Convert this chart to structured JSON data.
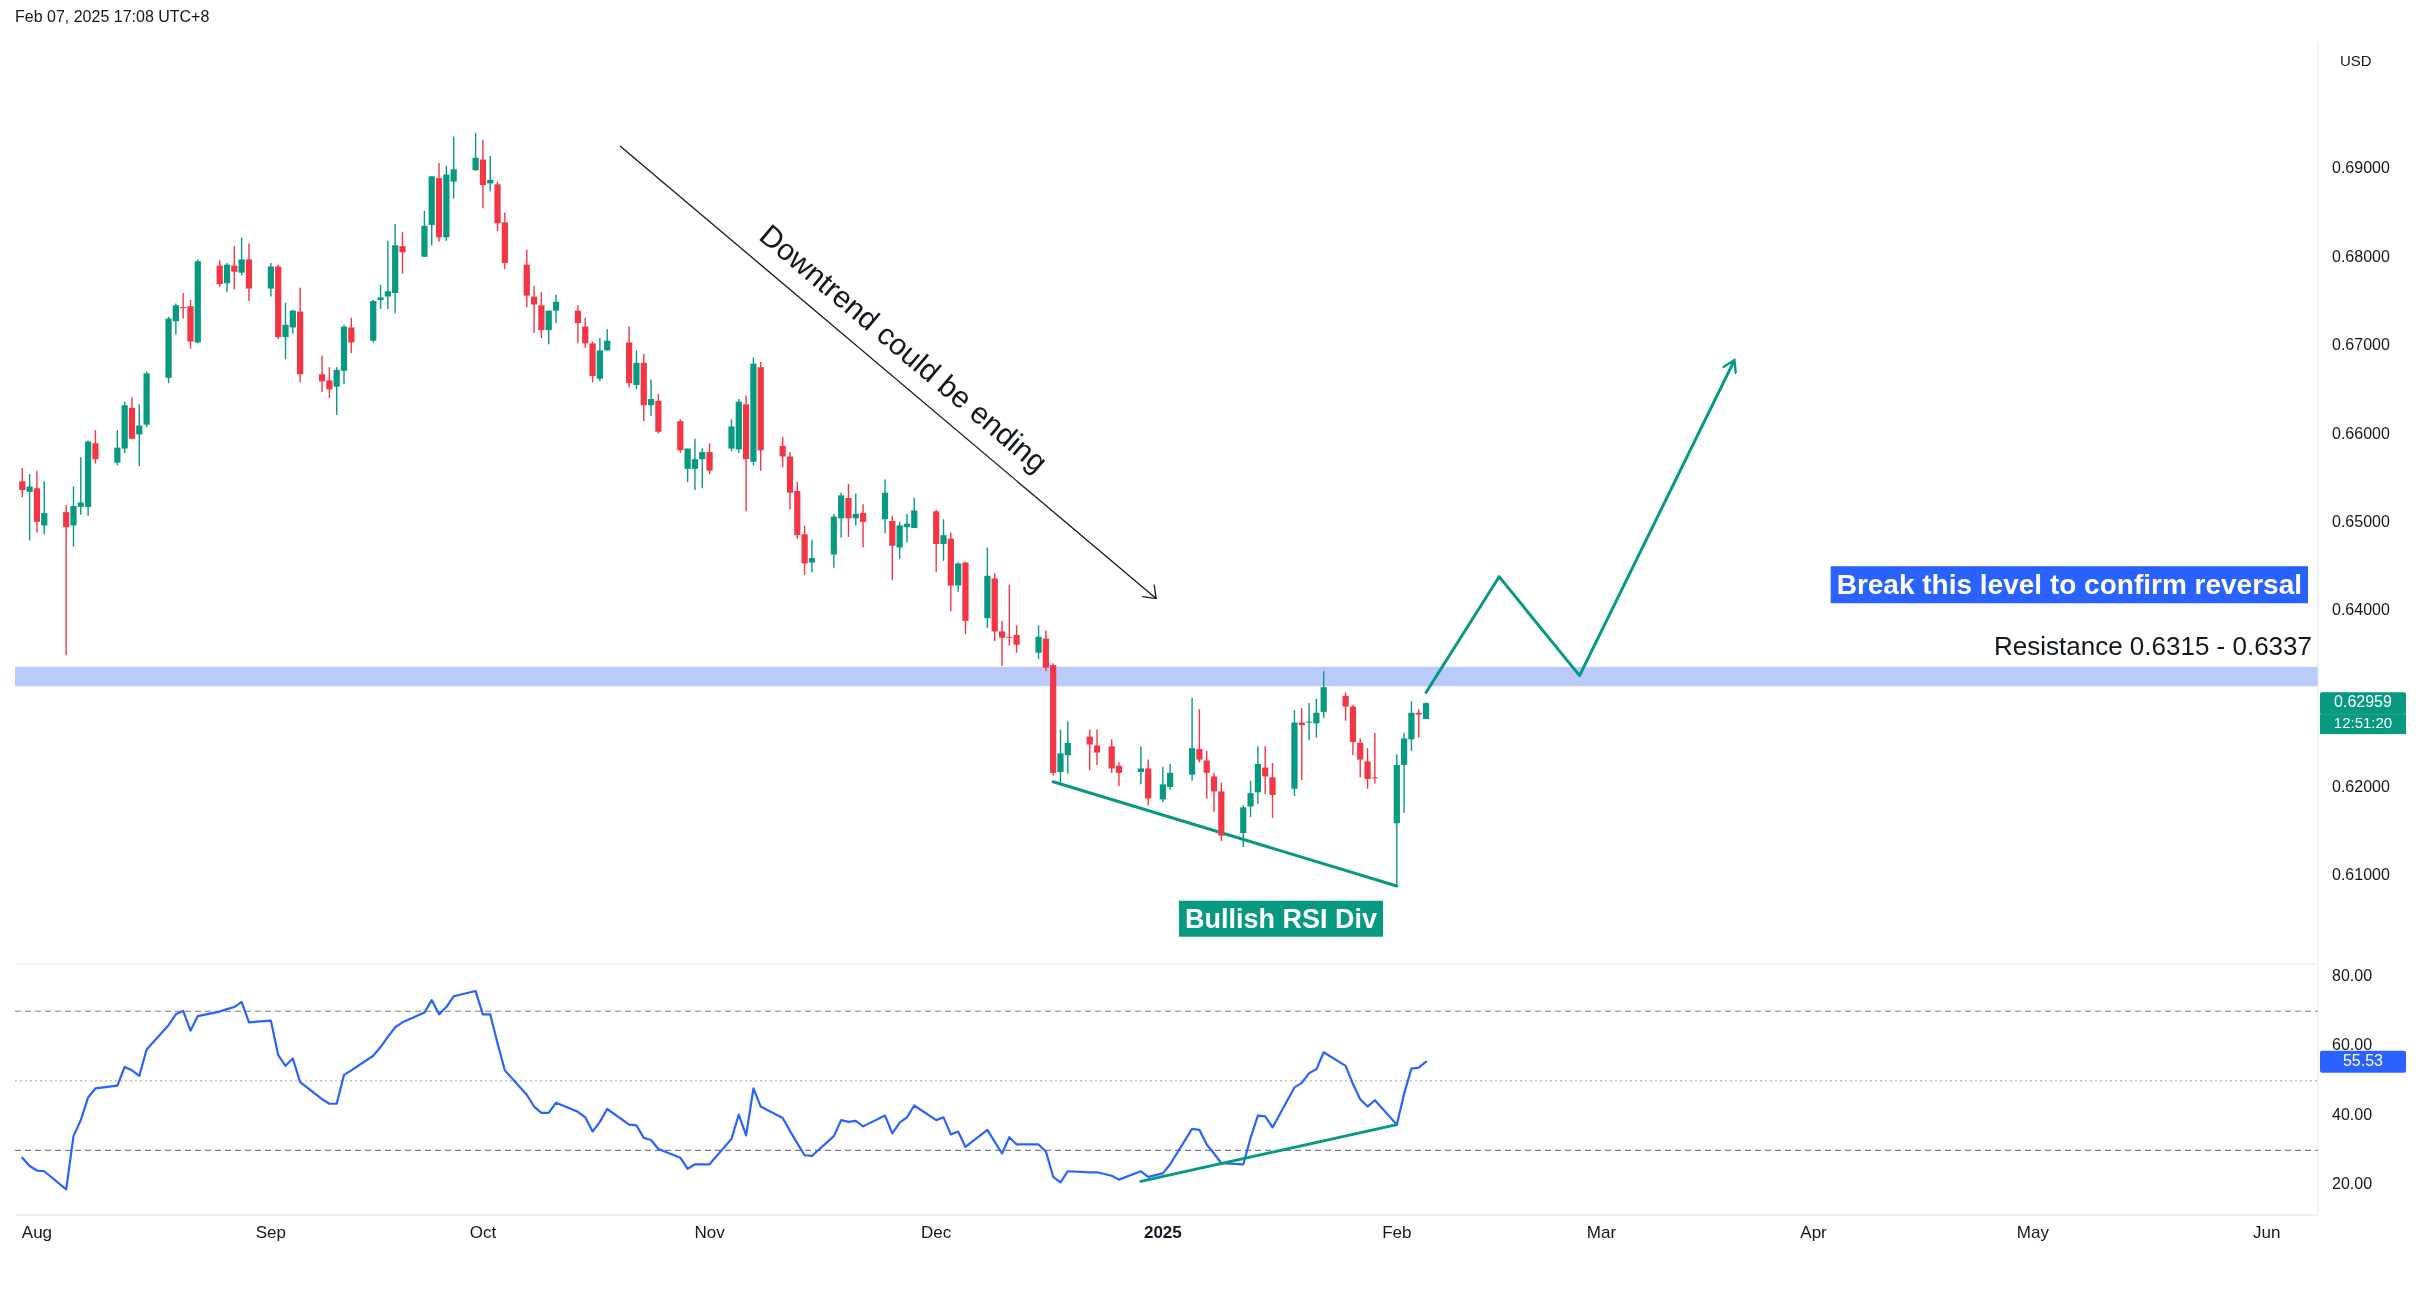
{
  "chart_data": [
    {
      "type": "candlestick",
      "title": "Feb 07, 2025 17:08 UTC+8",
      "ylabel": "USD",
      "tick_labels": "y",
      "xlim": [
        "2024-07-29",
        "2025-06-09"
      ],
      "ylim": [
        0.6003,
        0.7044
      ],
      "yticks": [
        {
          "value": 0.61,
          "label": "0.61000"
        },
        {
          "value": 0.62,
          "label": "0.62000"
        },
        {
          "value": 0.64,
          "label": "0.64000"
        },
        {
          "value": 0.65,
          "label": "0.65000"
        },
        {
          "value": 0.66,
          "label": "0.66000"
        },
        {
          "value": 0.67,
          "label": "0.67000"
        },
        {
          "value": 0.68,
          "label": "0.68000"
        },
        {
          "value": 0.69,
          "label": "0.69000"
        }
      ],
      "series": [
        {
          "type": "candlestick",
          "x": [
            "2024-07-30",
            "2024-07-31",
            "2024-08-01",
            "2024-08-02",
            "2024-08-05",
            "2024-08-06",
            "2024-08-07",
            "2024-08-08",
            "2024-08-09",
            "2024-08-12",
            "2024-08-13",
            "2024-08-14",
            "2024-08-15",
            "2024-08-16",
            "2024-08-19",
            "2024-08-20",
            "2024-08-21",
            "2024-08-22",
            "2024-08-23",
            "2024-08-26",
            "2024-08-27",
            "2024-08-28",
            "2024-08-29",
            "2024-08-30",
            "2024-09-02",
            "2024-09-03",
            "2024-09-04",
            "2024-09-05",
            "2024-09-06",
            "2024-09-09",
            "2024-09-10",
            "2024-09-11",
            "2024-09-12",
            "2024-09-13",
            "2024-09-16",
            "2024-09-17",
            "2024-09-18",
            "2024-09-19",
            "2024-09-20",
            "2024-09-23",
            "2024-09-24",
            "2024-09-25",
            "2024-09-26",
            "2024-09-27",
            "2024-09-30",
            "2024-10-01",
            "2024-10-02",
            "2024-10-03",
            "2024-10-04",
            "2024-10-07",
            "2024-10-08",
            "2024-10-09",
            "2024-10-10",
            "2024-10-11",
            "2024-10-14",
            "2024-10-15",
            "2024-10-16",
            "2024-10-17",
            "2024-10-18",
            "2024-10-21",
            "2024-10-22",
            "2024-10-23",
            "2024-10-24",
            "2024-10-25",
            "2024-10-28",
            "2024-10-29",
            "2024-10-30",
            "2024-10-31",
            "2024-11-01",
            "2024-11-04",
            "2024-11-05",
            "2024-11-06",
            "2024-11-07",
            "2024-11-08",
            "2024-11-11",
            "2024-11-12",
            "2024-11-13",
            "2024-11-14",
            "2024-11-15",
            "2024-11-18",
            "2024-11-19",
            "2024-11-20",
            "2024-11-21",
            "2024-11-22",
            "2024-11-25",
            "2024-11-26",
            "2024-11-27",
            "2024-11-28",
            "2024-11-29",
            "2024-12-02",
            "2024-12-03",
            "2024-12-04",
            "2024-12-05",
            "2024-12-06",
            "2024-12-09",
            "2024-12-10",
            "2024-12-11",
            "2024-12-12",
            "2024-12-13",
            "2024-12-16",
            "2024-12-17",
            "2024-12-18",
            "2024-12-19",
            "2024-12-20",
            "2024-12-23",
            "2024-12-24",
            "2024-12-26",
            "2024-12-27",
            "2024-12-30",
            "2024-12-31",
            "2025-01-02",
            "2025-01-03",
            "2025-01-06",
            "2025-01-07",
            "2025-01-08",
            "2025-01-09",
            "2025-01-10",
            "2025-01-13",
            "2025-01-14",
            "2025-01-15",
            "2025-01-16",
            "2025-01-17",
            "2025-01-20",
            "2025-01-21",
            "2025-01-22",
            "2025-01-23",
            "2025-01-24",
            "2025-01-27",
            "2025-01-28",
            "2025-01-29",
            "2025-01-30",
            "2025-01-31",
            "2025-02-03",
            "2025-02-04",
            "2025-02-05",
            "2025-02-06",
            "2025-02-07"
          ],
          "ohlc": [
            [
              0.6547,
              0.6562,
              0.6529,
              0.6537
            ],
            [
              0.6535,
              0.6555,
              0.648,
              0.6541
            ],
            [
              0.6539,
              0.6559,
              0.6489,
              0.6501
            ],
            [
              0.6497,
              0.6547,
              0.6487,
              0.6511
            ],
            [
              0.6512,
              0.652,
              0.635,
              0.6495
            ],
            [
              0.6497,
              0.6541,
              0.6473,
              0.6519
            ],
            [
              0.6518,
              0.6574,
              0.6509,
              0.6523
            ],
            [
              0.6518,
              0.6593,
              0.6508,
              0.6592
            ],
            [
              0.659,
              0.6605,
              0.6567,
              0.6572
            ],
            [
              0.6568,
              0.6605,
              0.6565,
              0.6585
            ],
            [
              0.6584,
              0.6637,
              0.6579,
              0.6633
            ],
            [
              0.663,
              0.6642,
              0.6595,
              0.6595
            ],
            [
              0.66,
              0.6634,
              0.6564,
              0.661
            ],
            [
              0.6611,
              0.6671,
              0.6608,
              0.6669
            ],
            [
              0.6664,
              0.6733,
              0.6658,
              0.6731
            ],
            [
              0.6728,
              0.6748,
              0.6713,
              0.6746
            ],
            [
              0.6744,
              0.676,
              0.6731,
              0.6743
            ],
            [
              0.6745,
              0.6752,
              0.6697,
              0.6705
            ],
            [
              0.6704,
              0.6798,
              0.6703,
              0.6796
            ],
            [
              0.6791,
              0.6797,
              0.6767,
              0.677
            ],
            [
              0.6771,
              0.6794,
              0.6761,
              0.6792
            ],
            [
              0.6791,
              0.6813,
              0.6764,
              0.6784
            ],
            [
              0.6783,
              0.6823,
              0.678,
              0.6798
            ],
            [
              0.6798,
              0.6816,
              0.6751,
              0.6765
            ],
            [
              0.6765,
              0.6794,
              0.6756,
              0.679
            ],
            [
              0.679,
              0.6792,
              0.6708,
              0.671
            ],
            [
              0.671,
              0.6749,
              0.6685,
              0.6724
            ],
            [
              0.6721,
              0.6741,
              0.6714,
              0.674
            ],
            [
              0.6739,
              0.6766,
              0.6659,
              0.6668
            ],
            [
              0.6668,
              0.6689,
              0.6648,
              0.666
            ],
            [
              0.6661,
              0.6676,
              0.6641,
              0.6651
            ],
            [
              0.6654,
              0.6676,
              0.6622,
              0.6673
            ],
            [
              0.6672,
              0.6724,
              0.6657,
              0.6722
            ],
            [
              0.6721,
              0.6732,
              0.6692,
              0.6704
            ],
            [
              0.6706,
              0.6752,
              0.6704,
              0.6751
            ],
            [
              0.6752,
              0.6769,
              0.6742,
              0.6755
            ],
            [
              0.6756,
              0.6819,
              0.6742,
              0.6762
            ],
            [
              0.676,
              0.6838,
              0.6737,
              0.6814
            ],
            [
              0.6813,
              0.6829,
              0.6782,
              0.6806
            ],
            [
              0.6801,
              0.6853,
              0.6801,
              0.6836
            ],
            [
              0.6837,
              0.6892,
              0.6814,
              0.6892
            ],
            [
              0.689,
              0.6907,
              0.6818,
              0.6823
            ],
            [
              0.6823,
              0.6904,
              0.6819,
              0.6894
            ],
            [
              0.6886,
              0.6937,
              0.6867,
              0.69
            ],
            [
              0.6899,
              0.6941,
              0.6898,
              0.6913
            ],
            [
              0.6911,
              0.6933,
              0.6856,
              0.6882
            ],
            [
              0.6884,
              0.6915,
              0.6875,
              0.6888
            ],
            [
              0.6883,
              0.6886,
              0.683,
              0.6839
            ],
            [
              0.684,
              0.6851,
              0.6787,
              0.6794
            ],
            [
              0.6792,
              0.6809,
              0.6744,
              0.6757
            ],
            [
              0.6756,
              0.6768,
              0.6715,
              0.6747
            ],
            [
              0.6746,
              0.6761,
              0.6709,
              0.6718
            ],
            [
              0.6718,
              0.674,
              0.6702,
              0.674
            ],
            [
              0.674,
              0.6758,
              0.6726,
              0.675
            ],
            [
              0.674,
              0.6746,
              0.6703,
              0.6726
            ],
            [
              0.6722,
              0.6732,
              0.6698,
              0.6703
            ],
            [
              0.6703,
              0.6705,
              0.6659,
              0.6666
            ],
            [
              0.6663,
              0.6709,
              0.666,
              0.6695
            ],
            [
              0.6695,
              0.6719,
              0.6695,
              0.6706
            ],
            [
              0.6704,
              0.6722,
              0.6653,
              0.6658
            ],
            [
              0.6656,
              0.6695,
              0.6651,
              0.6681
            ],
            [
              0.6681,
              0.6691,
              0.6615,
              0.6633
            ],
            [
              0.6633,
              0.6662,
              0.6621,
              0.664
            ],
            [
              0.6638,
              0.6646,
              0.6601,
              0.6603
            ],
            [
              0.6615,
              0.6617,
              0.6579,
              0.6582
            ],
            [
              0.6561,
              0.6584,
              0.6546,
              0.6584
            ],
            [
              0.6561,
              0.6595,
              0.6537,
              0.6572
            ],
            [
              0.6572,
              0.6584,
              0.6539,
              0.658
            ],
            [
              0.658,
              0.659,
              0.6555,
              0.6559
            ],
            [
              0.6584,
              0.6617,
              0.6581,
              0.6609
            ],
            [
              0.6583,
              0.664,
              0.6579,
              0.6637
            ],
            [
              0.6634,
              0.6644,
              0.6513,
              0.6572
            ],
            [
              0.6569,
              0.6687,
              0.6565,
              0.668
            ],
            [
              0.6676,
              0.6682,
              0.6559,
              0.6582
            ],
            [
              0.6587,
              0.6597,
              0.6563,
              0.6575
            ],
            [
              0.6575,
              0.658,
              0.6515,
              0.6534
            ],
            [
              0.6536,
              0.6546,
              0.6482,
              0.6486
            ],
            [
              0.6487,
              0.6497,
              0.6441,
              0.6454
            ],
            [
              0.6455,
              0.6481,
              0.6444,
              0.646
            ],
            [
              0.6464,
              0.651,
              0.6449,
              0.6507
            ],
            [
              0.6505,
              0.6534,
              0.6483,
              0.6531
            ],
            [
              0.6528,
              0.6544,
              0.6484,
              0.6505
            ],
            [
              0.6505,
              0.6533,
              0.6497,
              0.651
            ],
            [
              0.6511,
              0.6521,
              0.6472,
              0.6501
            ],
            [
              0.6504,
              0.6549,
              0.6488,
              0.6534
            ],
            [
              0.6502,
              0.6508,
              0.6435,
              0.6474
            ],
            [
              0.6472,
              0.6501,
              0.6459,
              0.6497
            ],
            [
              0.6495,
              0.651,
              0.6478,
              0.6499
            ],
            [
              0.6494,
              0.6528,
              0.6494,
              0.6514
            ],
            [
              0.6513,
              0.6515,
              0.6444,
              0.6476
            ],
            [
              0.6476,
              0.6504,
              0.6457,
              0.6486
            ],
            [
              0.6482,
              0.6489,
              0.64,
              0.6429
            ],
            [
              0.6429,
              0.6455,
              0.6422,
              0.6454
            ],
            [
              0.6455,
              0.6456,
              0.6374,
              0.6389
            ],
            [
              0.6392,
              0.6472,
              0.6381,
              0.644
            ],
            [
              0.6437,
              0.6443,
              0.6366,
              0.6377
            ],
            [
              0.6377,
              0.6389,
              0.6338,
              0.637
            ],
            [
              0.6371,
              0.643,
              0.6361,
              0.637
            ],
            [
              0.6373,
              0.6384,
              0.6353,
              0.6362
            ],
            [
              0.6353,
              0.6384,
              0.6346,
              0.6371
            ],
            [
              0.6369,
              0.6378,
              0.6332,
              0.6336
            ],
            [
              0.6339,
              0.6341,
              0.6214,
              0.6217
            ],
            [
              0.6218,
              0.6266,
              0.6204,
              0.6239
            ],
            [
              0.6237,
              0.6275,
              0.6216,
              0.6251
            ],
            [
              0.6258,
              0.6266,
              0.622,
              0.6249
            ],
            [
              0.6248,
              0.6266,
              0.6226,
              0.624
            ],
            [
              0.6247,
              0.6255,
              0.6217,
              0.6222
            ],
            [
              0.6225,
              0.6229,
              0.6202,
              0.6217
            ],
            [
              0.6218,
              0.6247,
              0.6204,
              0.6222
            ],
            [
              0.6222,
              0.6232,
              0.618,
              0.6188
            ],
            [
              0.6187,
              0.6224,
              0.6184,
              0.6204
            ],
            [
              0.6201,
              0.6227,
              0.6198,
              0.6217
            ],
            [
              0.6215,
              0.6302,
              0.6208,
              0.6245
            ],
            [
              0.6244,
              0.6289,
              0.6229,
              0.6232
            ],
            [
              0.6231,
              0.6242,
              0.6188,
              0.6217
            ],
            [
              0.6213,
              0.6217,
              0.6173,
              0.6196
            ],
            [
              0.6196,
              0.6206,
              0.614,
              0.6146
            ],
            [
              0.6149,
              0.618,
              0.6133,
              0.6178
            ],
            [
              0.6179,
              0.6208,
              0.6167,
              0.6194
            ],
            [
              0.6195,
              0.6247,
              0.6182,
              0.6227
            ],
            [
              0.6223,
              0.6247,
              0.6193,
              0.6213
            ],
            [
              0.6212,
              0.6228,
              0.6166,
              0.6192
            ],
            [
              0.6199,
              0.6288,
              0.6191,
              0.6274
            ],
            [
              0.6274,
              0.629,
              0.6209,
              0.6271
            ],
            [
              0.6274,
              0.6296,
              0.6254,
              0.6275
            ],
            [
              0.6273,
              0.6301,
              0.6257,
              0.6285
            ],
            [
              0.6286,
              0.6332,
              0.6279,
              0.6314
            ],
            [
              0.6304,
              0.6308,
              0.6276,
              0.6292
            ],
            [
              0.6292,
              0.6294,
              0.6237,
              0.6252
            ],
            [
              0.6251,
              0.6256,
              0.6212,
              0.6232
            ],
            [
              0.623,
              0.6245,
              0.6199,
              0.621
            ],
            [
              0.6212,
              0.6262,
              0.6205,
              0.6211
            ],
            [
              0.616,
              0.6238,
              0.6089,
              0.6226
            ],
            [
              0.6226,
              0.6262,
              0.6172,
              0.6256
            ],
            [
              0.6255,
              0.6298,
              0.6242,
              0.6285
            ],
            [
              0.6285,
              0.6289,
              0.6257,
              0.6283
            ],
            [
              0.6278,
              0.6297,
              0.6278,
              0.62959
            ]
          ],
          "colors": [
            "#f23645",
            "#089981",
            "#f23645",
            "#089981",
            "#f23645",
            "#089981",
            "#089981",
            "#089981",
            "#f23645",
            "#089981",
            "#089981",
            "#f23645",
            "#089981",
            "#089981",
            "#089981",
            "#089981",
            "#f23645",
            "#f23645",
            "#089981",
            "#f23645",
            "#089981",
            "#f23645",
            "#089981",
            "#f23645",
            "#089981",
            "#f23645",
            "#089981",
            "#089981",
            "#f23645",
            "#f23645",
            "#f23645",
            "#089981",
            "#089981",
            "#f23645",
            "#089981",
            "#089981",
            "#089981",
            "#089981",
            "#f23645",
            "#089981",
            "#089981",
            "#f23645",
            "#089981",
            "#089981",
            "#089981",
            "#f23645",
            "#089981",
            "#f23645",
            "#f23645",
            "#f23645",
            "#f23645",
            "#f23645",
            "#089981",
            "#089981",
            "#f23645",
            "#f23645",
            "#f23645",
            "#089981",
            "#089981",
            "#f23645",
            "#089981",
            "#f23645",
            "#089981",
            "#f23645",
            "#f23645",
            "#089981",
            "#089981",
            "#089981",
            "#f23645",
            "#089981",
            "#089981",
            "#f23645",
            "#089981",
            "#f23645",
            "#f23645",
            "#f23645",
            "#f23645",
            "#f23645",
            "#089981",
            "#089981",
            "#089981",
            "#f23645",
            "#089981",
            "#f23645",
            "#089981",
            "#f23645",
            "#089981",
            "#089981",
            "#089981",
            "#f23645",
            "#089981",
            "#f23645",
            "#089981",
            "#f23645",
            "#089981",
            "#f23645",
            "#f23645",
            "#f23645",
            "#f23645",
            "#089981",
            "#f23645",
            "#f23645",
            "#089981",
            "#089981",
            "#f23645",
            "#f23645",
            "#f23645",
            "#f23645",
            "#089981",
            "#f23645",
            "#089981",
            "#089981",
            "#089981",
            "#f23645",
            "#f23645",
            "#f23645",
            "#f23645",
            "#089981",
            "#089981",
            "#089981",
            "#f23645",
            "#f23645",
            "#089981",
            "#f23645",
            "#089981",
            "#089981",
            "#089981",
            "#f23645",
            "#f23645",
            "#f23645",
            "#f23645",
            "#f23645",
            "#089981",
            "#089981",
            "#089981",
            "#f23645",
            "#089981"
          ]
        },
        {
          "type": "line",
          "color": "#089981",
          "x": [
            "2025-02-07",
            "2025-02-17",
            "2025-02-28",
            "2025-03-21"
          ],
          "values": [
            0.6308,
            0.6439,
            0.6327,
            0.6681
          ]
        },
        {
          "type": "line",
          "color": "#089981",
          "x": [
            "2024-12-18",
            "2025-02-03"
          ],
          "values": [
            0.6207,
            0.6089
          ]
        }
      ],
      "bands": [
        {
          "axis": "y",
          "from": 0.6315,
          "to": 0.6337,
          "label": "Resistance 0.6315 - 0.6337",
          "color": "#bbcbfb"
        }
      ],
      "annotations": [
        "Downtrend could be ending",
        "Break this level to confirm reversal",
        "Bullish RSI Div",
        "0.62959",
        "12:51:20"
      ]
    },
    {
      "type": "line",
      "x": [
        "2024-07-30",
        "2024-07-31",
        "2024-08-01",
        "2024-08-02",
        "2024-08-05",
        "2024-08-06",
        "2024-08-07",
        "2024-08-08",
        "2024-08-09",
        "2024-08-12",
        "2024-08-13",
        "2024-08-14",
        "2024-08-15",
        "2024-08-16",
        "2024-08-19",
        "2024-08-20",
        "2024-08-21",
        "2024-08-22",
        "2024-08-23",
        "2024-08-26",
        "2024-08-27",
        "2024-08-28",
        "2024-08-29",
        "2024-08-30",
        "2024-09-02",
        "2024-09-03",
        "2024-09-04",
        "2024-09-05",
        "2024-09-06",
        "2024-09-09",
        "2024-09-10",
        "2024-09-11",
        "2024-09-12",
        "2024-09-13",
        "2024-09-16",
        "2024-09-17",
        "2024-09-18",
        "2024-09-19",
        "2024-09-20",
        "2024-09-23",
        "2024-09-24",
        "2024-09-25",
        "2024-09-26",
        "2024-09-27",
        "2024-09-30",
        "2024-10-01",
        "2024-10-02",
        "2024-10-03",
        "2024-10-04",
        "2024-10-07",
        "2024-10-08",
        "2024-10-09",
        "2024-10-10",
        "2024-10-11",
        "2024-10-14",
        "2024-10-15",
        "2024-10-16",
        "2024-10-17",
        "2024-10-18",
        "2024-10-21",
        "2024-10-22",
        "2024-10-23",
        "2024-10-24",
        "2024-10-25",
        "2024-10-28",
        "2024-10-29",
        "2024-10-30",
        "2024-10-31",
        "2024-11-01",
        "2024-11-04",
        "2024-11-05",
        "2024-11-06",
        "2024-11-07",
        "2024-11-08",
        "2024-11-11",
        "2024-11-12",
        "2024-11-13",
        "2024-11-14",
        "2024-11-15",
        "2024-11-18",
        "2024-11-19",
        "2024-11-20",
        "2024-11-21",
        "2024-11-22",
        "2024-11-25",
        "2024-11-26",
        "2024-11-27",
        "2024-11-28",
        "2024-11-29",
        "2024-12-02",
        "2024-12-03",
        "2024-12-04",
        "2024-12-05",
        "2024-12-06",
        "2024-12-09",
        "2024-12-10",
        "2024-12-11",
        "2024-12-12",
        "2024-12-13",
        "2024-12-16",
        "2024-12-17",
        "2024-12-18",
        "2024-12-19",
        "2024-12-20",
        "2024-12-23",
        "2024-12-24",
        "2024-12-26",
        "2024-12-27",
        "2024-12-30",
        "2024-12-31",
        "2025-01-02",
        "2025-01-03",
        "2025-01-06",
        "2025-01-07",
        "2025-01-08",
        "2025-01-09",
        "2025-01-10",
        "2025-01-13",
        "2025-01-14",
        "2025-01-15",
        "2025-01-16",
        "2025-01-17",
        "2025-01-20",
        "2025-01-21",
        "2025-01-22",
        "2025-01-23",
        "2025-01-24",
        "2025-01-27",
        "2025-01-28",
        "2025-01-29",
        "2025-01-30",
        "2025-01-31",
        "2025-02-03",
        "2025-02-04",
        "2025-02-05",
        "2025-02-06",
        "2025-02-07"
      ],
      "xlim": [
        "2024-07-29",
        "2025-06-09"
      ],
      "xticks": [
        {
          "value": "2024-08-01",
          "label": "Aug"
        },
        {
          "value": "2024-09-02",
          "label": "Sep"
        },
        {
          "value": "2024-10-01",
          "label": "Oct"
        },
        {
          "value": "2024-11-01",
          "label": "Nov"
        },
        {
          "value": "2024-12-02",
          "label": "Dec"
        },
        {
          "value": "2025-01-02",
          "label": "2025"
        },
        {
          "value": "2025-02-03",
          "label": "Feb"
        },
        {
          "value": "2025-03-03",
          "label": "Mar"
        },
        {
          "value": "2025-04-01",
          "label": "Apr"
        },
        {
          "value": "2025-05-01",
          "label": "May"
        },
        {
          "value": "2025-06-02",
          "label": "Jun"
        }
      ],
      "ylim": [
        12,
        83
      ],
      "yticks": [
        {
          "value": 20,
          "label": "20.00"
        },
        {
          "value": 40,
          "label": "40.00"
        },
        {
          "value": 60,
          "label": "60.00"
        },
        {
          "value": 80,
          "label": "80.00"
        }
      ],
      "series": [
        {
          "color": "#2962ff",
          "values": [
            27.9,
            25.5,
            24.2,
            24.0,
            18.8,
            34.1,
            38.7,
            45.2,
            47.8,
            48.6,
            54.0,
            53.0,
            51.4,
            59.0,
            66.0,
            69.1,
            70.1,
            64.4,
            68.6,
            69.9,
            70.6,
            71.2,
            72.7,
            66.8,
            67.3,
            57.4,
            54.3,
            56.4,
            49.6,
            44.7,
            43.4,
            43.4,
            51.7,
            53.0,
            57.2,
            59.7,
            62.6,
            65.4,
            66.8,
            69.6,
            73.2,
            69.1,
            71.2,
            74.3,
            75.8,
            69.1,
            69.1,
            60.8,
            53.0,
            46.0,
            42.6,
            40.8,
            40.8,
            43.7,
            41.1,
            39.5,
            35.4,
            38.2,
            41.9,
            37.4,
            37.2,
            33.6,
            33.0,
            30.4,
            27.9,
            24.7,
            26.0,
            26.0,
            26.0,
            33.3,
            40.3,
            34.3,
            47.8,
            42.6,
            39.3,
            35.6,
            32.0,
            28.6,
            28.4,
            34.1,
            38.7,
            38.2,
            38.5,
            36.9,
            40.0,
            34.9,
            38.0,
            39.5,
            42.9,
            38.7,
            39.5,
            34.6,
            35.4,
            31.0,
            35.9,
            32.5,
            29.1,
            33.8,
            31.7,
            31.7,
            29.7,
            22.4,
            20.8,
            24.0,
            23.7,
            23.7,
            22.7,
            21.6,
            24.0,
            22.4,
            23.4,
            26.0,
            36.2,
            35.9,
            31.7,
            29.1,
            26.3,
            26.0,
            33.6,
            40.0,
            39.8,
            36.6,
            48.1,
            49.4,
            52.2,
            53.3,
            58.2,
            54.3,
            49.1,
            44.7,
            42.6,
            44.4,
            37.4,
            46.3,
            53.5,
            53.8,
            55.5
          ]
        },
        {
          "type": "line",
          "color": "#089981",
          "x": [
            "2024-12-30",
            "2025-02-03"
          ],
          "values": [
            21.1,
            37.4
          ]
        }
      ],
      "ref_lines": [
        {
          "axis": "y",
          "value": 70,
          "line_style": "dashed",
          "color": "#787b86"
        },
        {
          "axis": "y",
          "value": 50,
          "line_style": "dotted",
          "color": "#b2b5be"
        },
        {
          "axis": "y",
          "value": 30,
          "line_style": "dashed",
          "color": "#787b86"
        }
      ],
      "annotations": [
        "55.53"
      ]
    }
  ]
}
